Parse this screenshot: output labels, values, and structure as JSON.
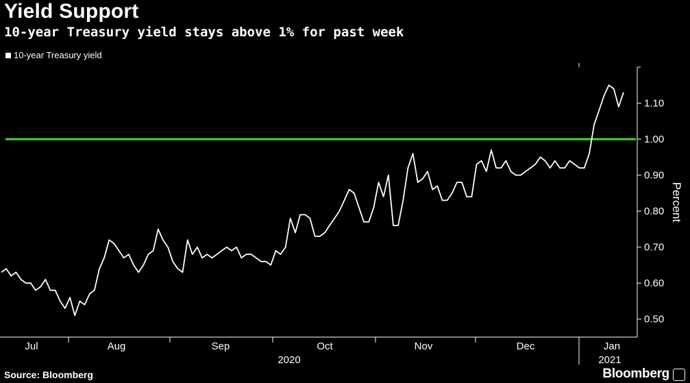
{
  "title": "Yield Support",
  "subtitle": "10-year Treasury yield stays above 1% for past week",
  "source": "Source: Bloomberg",
  "brand": "Bloomberg",
  "colors": {
    "background": "#000000",
    "series": "#ffffff",
    "threshold": "#3ee022",
    "axis": "#ffffff"
  },
  "chart_data": {
    "type": "line",
    "legend": [
      "10-year Treasury yield"
    ],
    "legend_position": "top-left",
    "ylabel": "Percent",
    "ylim": [
      0.45,
      1.2
    ],
    "yticks": [
      0.5,
      0.6,
      0.7,
      0.8,
      0.9,
      1.0,
      1.1
    ],
    "ytick_labels": [
      "0.50",
      "0.60",
      "0.70",
      "0.80",
      "0.90",
      "1.00",
      "1.10"
    ],
    "y_axis_side": "right",
    "x_month_labels": [
      "Jul",
      "Aug",
      "Sep",
      "Oct",
      "Nov",
      "Dec",
      "Jan"
    ],
    "x_year_labels": [
      "2020",
      "2021"
    ],
    "grid": false,
    "reference_line": {
      "value": 1.0,
      "color": "#3ee022"
    },
    "series": [
      {
        "name": "10-year Treasury yield",
        "values": [
          0.63,
          0.64,
          0.62,
          0.63,
          0.61,
          0.6,
          0.6,
          0.58,
          0.59,
          0.61,
          0.58,
          0.58,
          0.55,
          0.53,
          0.56,
          0.51,
          0.55,
          0.54,
          0.57,
          0.58,
          0.64,
          0.67,
          0.72,
          0.71,
          0.69,
          0.67,
          0.68,
          0.65,
          0.63,
          0.65,
          0.68,
          0.69,
          0.75,
          0.72,
          0.7,
          0.66,
          0.64,
          0.63,
          0.72,
          0.68,
          0.7,
          0.67,
          0.68,
          0.67,
          0.68,
          0.69,
          0.7,
          0.69,
          0.7,
          0.67,
          0.68,
          0.68,
          0.67,
          0.66,
          0.66,
          0.65,
          0.69,
          0.68,
          0.7,
          0.78,
          0.74,
          0.79,
          0.79,
          0.78,
          0.73,
          0.73,
          0.74,
          0.76,
          0.78,
          0.8,
          0.83,
          0.86,
          0.85,
          0.81,
          0.77,
          0.77,
          0.81,
          0.88,
          0.84,
          0.9,
          0.76,
          0.76,
          0.83,
          0.92,
          0.96,
          0.88,
          0.89,
          0.91,
          0.86,
          0.87,
          0.83,
          0.83,
          0.85,
          0.88,
          0.88,
          0.84,
          0.84,
          0.93,
          0.94,
          0.91,
          0.97,
          0.92,
          0.92,
          0.94,
          0.91,
          0.9,
          0.9,
          0.91,
          0.92,
          0.93,
          0.95,
          0.94,
          0.92,
          0.94,
          0.92,
          0.92,
          0.94,
          0.93,
          0.92,
          0.92,
          0.96,
          1.04,
          1.08,
          1.12,
          1.15,
          1.14,
          1.09,
          1.13
        ]
      }
    ]
  }
}
